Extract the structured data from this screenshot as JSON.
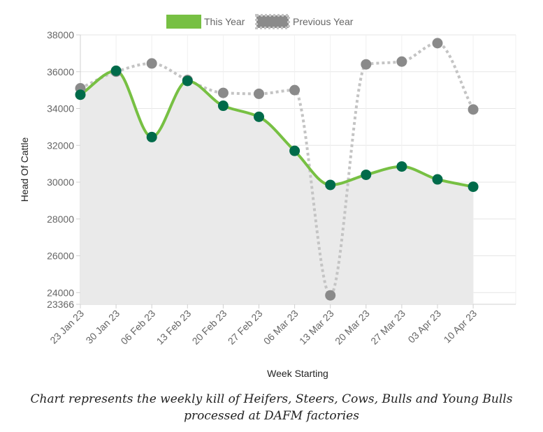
{
  "chart_data": {
    "type": "line",
    "categories": [
      "23 Jan 23",
      "30 Jan 23",
      "06 Feb 23",
      "13 Feb 23",
      "20 Feb 23",
      "27 Feb 23",
      "06 Mar 23",
      "13 Mar 23",
      "20 Mar 23",
      "27 Mar 23",
      "03 Apr 23",
      "10 Apr 23"
    ],
    "series": [
      {
        "name": "This Year",
        "values": [
          34750,
          36050,
          32450,
          35500,
          34150,
          33550,
          31700,
          29850,
          30400,
          30850,
          30150,
          29750
        ],
        "color": "#77c043",
        "marker_color": "#006b4a",
        "fill": "#eaeaea",
        "style": "solid-smooth-area"
      },
      {
        "name": "Previous Year",
        "values": [
          35100,
          36000,
          36450,
          35550,
          34850,
          34800,
          35000,
          23850,
          36400,
          36550,
          37550,
          33950
        ],
        "color": "#c4c4c4",
        "marker_color": "#8a8a8a",
        "style": "dotted"
      }
    ],
    "xlabel": "Week Starting",
    "ylabel": "Head Of Cattle",
    "ylim": [
      23366,
      38000
    ],
    "yticks": [
      23366,
      24000,
      26000,
      28000,
      30000,
      32000,
      34000,
      36000,
      38000
    ],
    "grid": true,
    "legend": "top-center"
  },
  "caption": "Chart represents the weekly kill of Heifers, Steers, Cows, Bulls and Young Bulls processed at DAFM factories"
}
